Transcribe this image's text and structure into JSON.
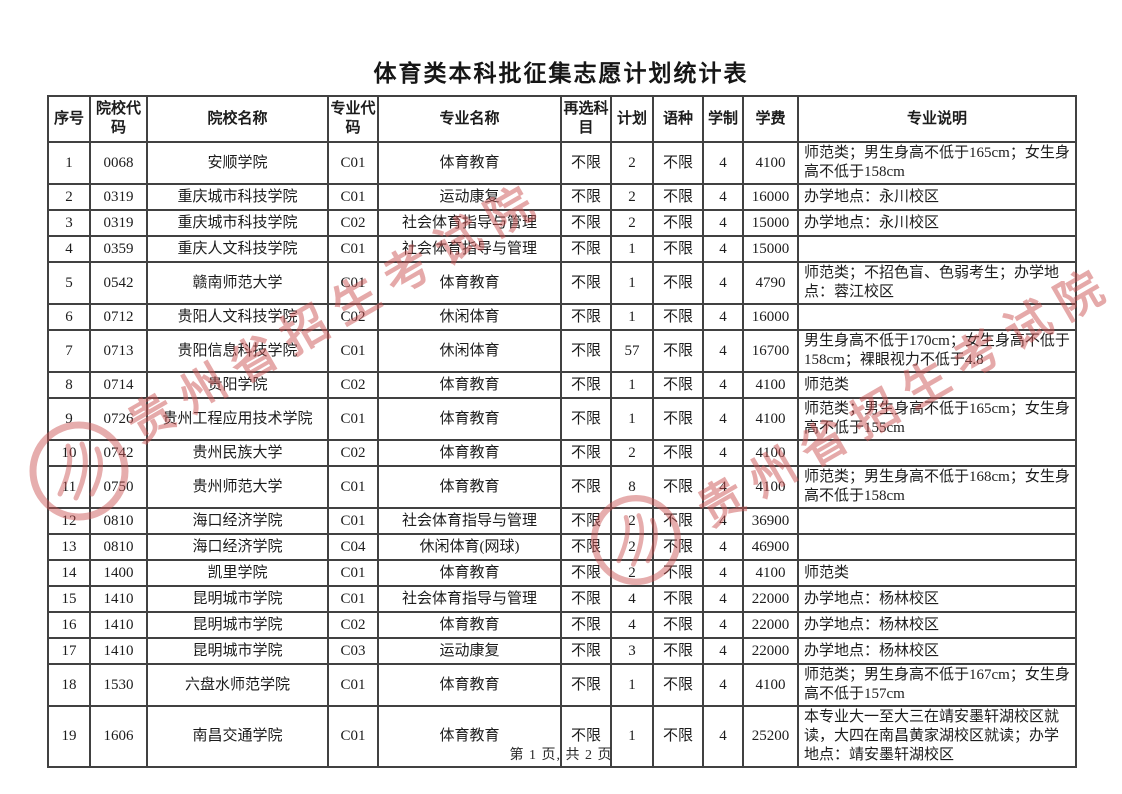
{
  "page": {
    "title": "体育类本科批征集志愿计划统计表",
    "footer": "第 1 页, 共 2 页"
  },
  "watermark": {
    "text": "贵州省招生考试院",
    "color": "#cb5454",
    "emblem": "seal-circle"
  },
  "table": {
    "columns": [
      "序号",
      "院校代码",
      "院校名称",
      "专业代码",
      "专业名称",
      "再选科目",
      "计划",
      "语种",
      "学制",
      "学费",
      "专业说明"
    ],
    "column_keys": [
      "no",
      "college_code",
      "college",
      "major_code",
      "major",
      "subject",
      "plan",
      "language",
      "years",
      "tuition",
      "note"
    ],
    "rows": [
      {
        "no": "1",
        "college_code": "0068",
        "college": "安顺学院",
        "major_code": "C01",
        "major": "体育教育",
        "subject": "不限",
        "plan": "2",
        "language": "不限",
        "years": "4",
        "tuition": "4100",
        "note": "师范类；男生身高不低于165cm；女生身高不低于158cm"
      },
      {
        "no": "2",
        "college_code": "0319",
        "college": "重庆城市科技学院",
        "major_code": "C01",
        "major": "运动康复",
        "subject": "不限",
        "plan": "2",
        "language": "不限",
        "years": "4",
        "tuition": "16000",
        "note": "办学地点：永川校区"
      },
      {
        "no": "3",
        "college_code": "0319",
        "college": "重庆城市科技学院",
        "major_code": "C02",
        "major": "社会体育指导与管理",
        "subject": "不限",
        "plan": "2",
        "language": "不限",
        "years": "4",
        "tuition": "15000",
        "note": "办学地点：永川校区"
      },
      {
        "no": "4",
        "college_code": "0359",
        "college": "重庆人文科技学院",
        "major_code": "C01",
        "major": "社会体育指导与管理",
        "subject": "不限",
        "plan": "1",
        "language": "不限",
        "years": "4",
        "tuition": "15000",
        "note": ""
      },
      {
        "no": "5",
        "college_code": "0542",
        "college": "赣南师范大学",
        "major_code": "C01",
        "major": "体育教育",
        "subject": "不限",
        "plan": "1",
        "language": "不限",
        "years": "4",
        "tuition": "4790",
        "note": "师范类；不招色盲、色弱考生；办学地点：蓉江校区"
      },
      {
        "no": "6",
        "college_code": "0712",
        "college": "贵阳人文科技学院",
        "major_code": "C02",
        "major": "休闲体育",
        "subject": "不限",
        "plan": "1",
        "language": "不限",
        "years": "4",
        "tuition": "16000",
        "note": ""
      },
      {
        "no": "7",
        "college_code": "0713",
        "college": "贵阳信息科技学院",
        "major_code": "C01",
        "major": "休闲体育",
        "subject": "不限",
        "plan": "57",
        "language": "不限",
        "years": "4",
        "tuition": "16700",
        "note": "男生身高不低于170cm；女生身高不低于158cm；裸眼视力不低于4.8"
      },
      {
        "no": "8",
        "college_code": "0714",
        "college": "贵阳学院",
        "major_code": "C02",
        "major": "体育教育",
        "subject": "不限",
        "plan": "1",
        "language": "不限",
        "years": "4",
        "tuition": "4100",
        "note": "师范类"
      },
      {
        "no": "9",
        "college_code": "0726",
        "college": "贵州工程应用技术学院",
        "major_code": "C01",
        "major": "体育教育",
        "subject": "不限",
        "plan": "1",
        "language": "不限",
        "years": "4",
        "tuition": "4100",
        "note": "师范类；男生身高不低于165cm；女生身高不低于155cm"
      },
      {
        "no": "10",
        "college_code": "0742",
        "college": "贵州民族大学",
        "major_code": "C02",
        "major": "体育教育",
        "subject": "不限",
        "plan": "2",
        "language": "不限",
        "years": "4",
        "tuition": "4100",
        "note": ""
      },
      {
        "no": "11",
        "college_code": "0750",
        "college": "贵州师范大学",
        "major_code": "C01",
        "major": "体育教育",
        "subject": "不限",
        "plan": "8",
        "language": "不限",
        "years": "4",
        "tuition": "4100",
        "note": "师范类；男生身高不低于168cm；女生身高不低于158cm"
      },
      {
        "no": "12",
        "college_code": "0810",
        "college": "海口经济学院",
        "major_code": "C01",
        "major": "社会体育指导与管理",
        "subject": "不限",
        "plan": "2",
        "language": "不限",
        "years": "4",
        "tuition": "36900",
        "note": ""
      },
      {
        "no": "13",
        "college_code": "0810",
        "college": "海口经济学院",
        "major_code": "C04",
        "major": "休闲体育(网球)",
        "subject": "不限",
        "plan": "2",
        "language": "不限",
        "years": "4",
        "tuition": "46900",
        "note": ""
      },
      {
        "no": "14",
        "college_code": "1400",
        "college": "凯里学院",
        "major_code": "C01",
        "major": "体育教育",
        "subject": "不限",
        "plan": "2",
        "language": "不限",
        "years": "4",
        "tuition": "4100",
        "note": "师范类"
      },
      {
        "no": "15",
        "college_code": "1410",
        "college": "昆明城市学院",
        "major_code": "C01",
        "major": "社会体育指导与管理",
        "subject": "不限",
        "plan": "4",
        "language": "不限",
        "years": "4",
        "tuition": "22000",
        "note": "办学地点：杨林校区"
      },
      {
        "no": "16",
        "college_code": "1410",
        "college": "昆明城市学院",
        "major_code": "C02",
        "major": "体育教育",
        "subject": "不限",
        "plan": "4",
        "language": "不限",
        "years": "4",
        "tuition": "22000",
        "note": "办学地点：杨林校区"
      },
      {
        "no": "17",
        "college_code": "1410",
        "college": "昆明城市学院",
        "major_code": "C03",
        "major": "运动康复",
        "subject": "不限",
        "plan": "3",
        "language": "不限",
        "years": "4",
        "tuition": "22000",
        "note": "办学地点：杨林校区"
      },
      {
        "no": "18",
        "college_code": "1530",
        "college": "六盘水师范学院",
        "major_code": "C01",
        "major": "体育教育",
        "subject": "不限",
        "plan": "1",
        "language": "不限",
        "years": "4",
        "tuition": "4100",
        "note": "师范类；男生身高不低于167cm；女生身高不低于157cm"
      },
      {
        "no": "19",
        "college_code": "1606",
        "college": "南昌交通学院",
        "major_code": "C01",
        "major": "体育教育",
        "subject": "不限",
        "plan": "1",
        "language": "不限",
        "years": "4",
        "tuition": "25200",
        "note": "本专业大一至大三在靖安墨轩湖校区就读，大四在南昌黄家湖校区就读；办学地点：靖安墨轩湖校区"
      }
    ]
  }
}
